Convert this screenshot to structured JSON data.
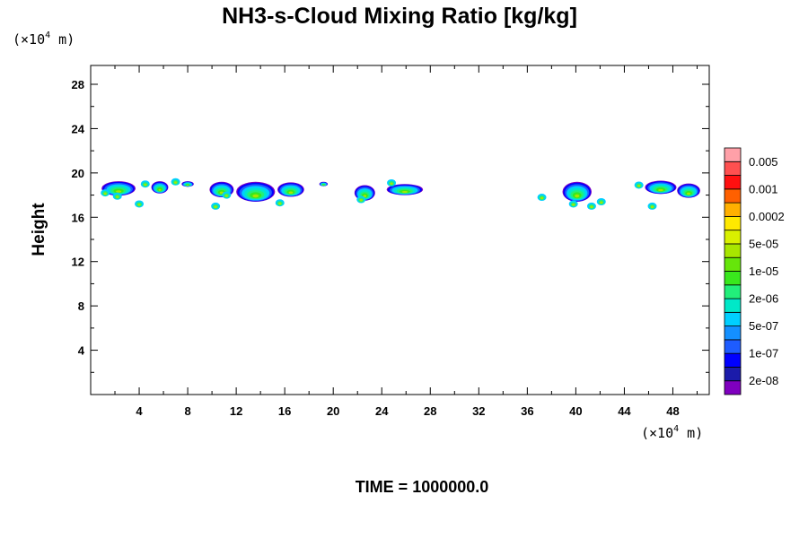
{
  "chart_data": {
    "type": "heatmap",
    "title": "NH3-s-Cloud Mixing Ratio [kg/kg]",
    "ylabel": "Height",
    "xlabel": "",
    "x_unit": {
      "prefix": "(×10",
      "exp": "4",
      "suffix": " m)"
    },
    "y_unit": {
      "prefix": "(×10",
      "exp": "4",
      "suffix": " m)"
    },
    "xlim": [
      0,
      51
    ],
    "ylim": [
      0,
      29.7
    ],
    "x_ticks": [
      4,
      8,
      12,
      16,
      20,
      24,
      28,
      32,
      36,
      40,
      44,
      48
    ],
    "x_tick_labels": [
      "4",
      "8",
      "12",
      "16",
      "20",
      "24",
      "28",
      "32",
      "36",
      "40",
      "44",
      "48"
    ],
    "y_ticks": [
      4,
      8,
      12,
      16,
      20,
      24,
      28
    ],
    "y_tick_labels": [
      "4",
      "8",
      "12",
      "16",
      "20",
      "24",
      "28"
    ],
    "colorbar": {
      "colors": [
        "#7f00bf",
        "#1b1baa",
        "#0000ff",
        "#1e5cff",
        "#1490ff",
        "#00cfff",
        "#00e8c8",
        "#22ef7a",
        "#39e81d",
        "#66e60a",
        "#a8e600",
        "#d9f000",
        "#ffe800",
        "#ffb000",
        "#ff6000",
        "#ff1010",
        "#ff5050",
        "#ffa0a8"
      ],
      "labels": [
        "2e-08",
        "1e-07",
        "5e-07",
        "2e-06",
        "1e-05",
        "5e-05",
        "0.0002",
        "0.001",
        "0.005"
      ]
    },
    "cloud_blobs": [
      {
        "x": 2.3,
        "y": 18.6,
        "w": 2.8,
        "h": 1.3
      },
      {
        "x": 5.7,
        "y": 18.7,
        "w": 1.4,
        "h": 1.1
      },
      {
        "x": 8.0,
        "y": 19.0,
        "w": 1.0,
        "h": 0.5
      },
      {
        "x": 10.8,
        "y": 18.5,
        "w": 2.0,
        "h": 1.4
      },
      {
        "x": 13.6,
        "y": 18.3,
        "w": 3.2,
        "h": 1.8
      },
      {
        "x": 16.5,
        "y": 18.5,
        "w": 2.2,
        "h": 1.3
      },
      {
        "x": 19.2,
        "y": 19.0,
        "w": 0.7,
        "h": 0.4
      },
      {
        "x": 22.6,
        "y": 18.2,
        "w": 1.7,
        "h": 1.4
      },
      {
        "x": 25.9,
        "y": 18.5,
        "w": 3.0,
        "h": 1.0
      },
      {
        "x": 40.1,
        "y": 18.3,
        "w": 2.4,
        "h": 1.8
      },
      {
        "x": 47.0,
        "y": 18.7,
        "w": 2.6,
        "h": 1.2
      },
      {
        "x": 49.3,
        "y": 18.4,
        "w": 1.9,
        "h": 1.3
      }
    ],
    "cloud_spots": [
      {
        "x": 1.2,
        "y": 18.2
      },
      {
        "x": 2.2,
        "y": 17.9
      },
      {
        "x": 4.0,
        "y": 17.2
      },
      {
        "x": 4.5,
        "y": 19.0
      },
      {
        "x": 7.0,
        "y": 19.2
      },
      {
        "x": 10.3,
        "y": 17.0
      },
      {
        "x": 11.2,
        "y": 18.0
      },
      {
        "x": 15.6,
        "y": 17.3
      },
      {
        "x": 22.3,
        "y": 17.6
      },
      {
        "x": 24.8,
        "y": 19.1
      },
      {
        "x": 37.2,
        "y": 17.8
      },
      {
        "x": 39.8,
        "y": 17.2
      },
      {
        "x": 41.3,
        "y": 17.0
      },
      {
        "x": 42.1,
        "y": 17.4
      },
      {
        "x": 45.2,
        "y": 18.9
      },
      {
        "x": 46.3,
        "y": 17.0
      }
    ],
    "time_label": "TIME = 1000000.0"
  }
}
